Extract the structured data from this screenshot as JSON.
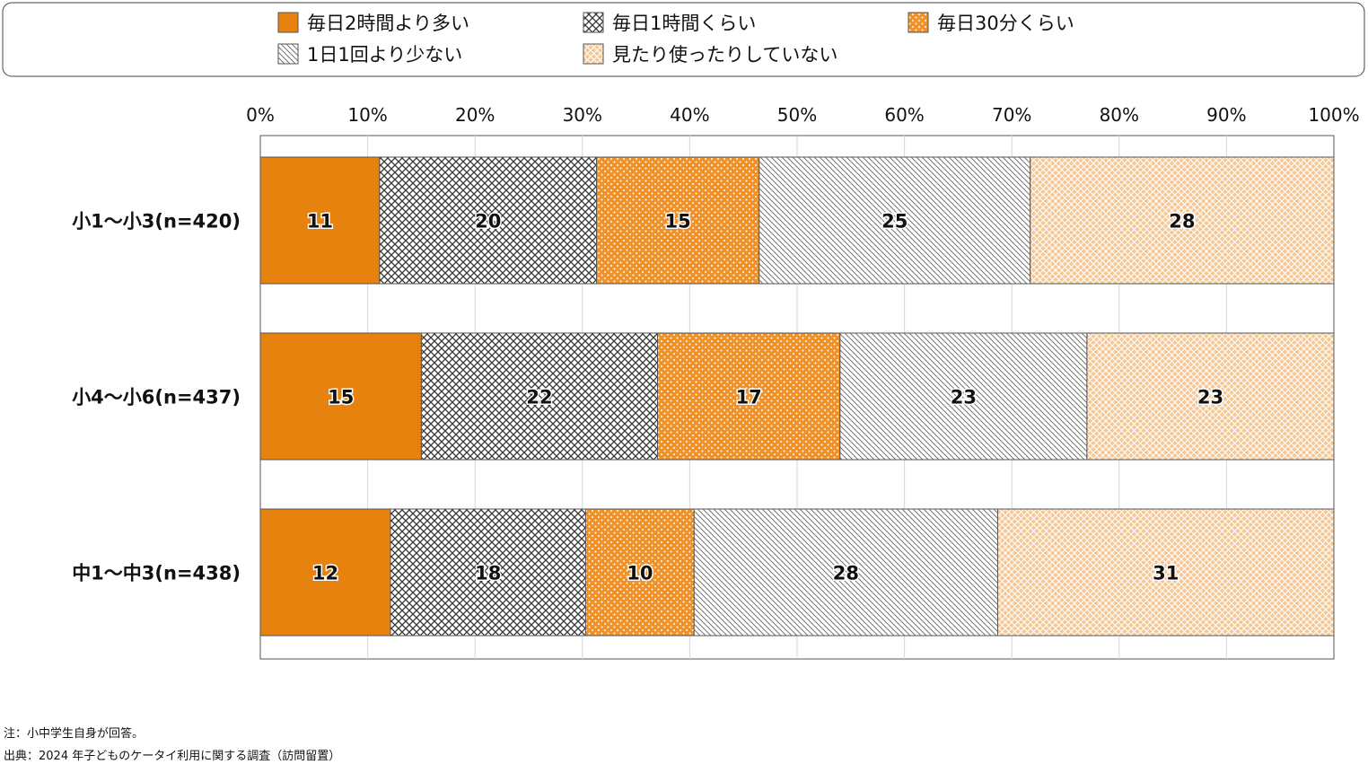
{
  "chart_data": {
    "type": "bar",
    "orientation": "horizontal-stacked-100",
    "categories": [
      "小1～小3(n=420)",
      "小4～小6(n=437)",
      "中1～中3(n=438)"
    ],
    "series": [
      {
        "name": "毎日2時間より多い",
        "values": [
          11,
          15,
          12
        ],
        "color": "#e8820f",
        "pattern": "solid"
      },
      {
        "name": "毎日1時間くらい",
        "values": [
          20,
          22,
          18
        ],
        "color": "#444444",
        "pattern": "crosshatch"
      },
      {
        "name": "毎日30分くらい",
        "values": [
          15,
          17,
          10
        ],
        "color": "#f0922a",
        "pattern": "dots"
      },
      {
        "name": "1日1回より少ない",
        "values": [
          25,
          23,
          28
        ],
        "color": "#888888",
        "pattern": "diagonal"
      },
      {
        "name": "見たり使ったりしていない",
        "values": [
          28,
          23,
          31
        ],
        "color": "#f5b06a",
        "pattern": "lightcross"
      }
    ],
    "xticks": [
      "0%",
      "10%",
      "20%",
      "30%",
      "40%",
      "50%",
      "60%",
      "70%",
      "80%",
      "90%",
      "100%"
    ],
    "xlim": [
      0,
      100
    ],
    "grid": true,
    "legend": "top"
  },
  "notes": {
    "note1": "注：小中学生自身が回答。",
    "note2": "出典：2024 年子どものケータイ利用に関する調査（訪問留置）"
  }
}
